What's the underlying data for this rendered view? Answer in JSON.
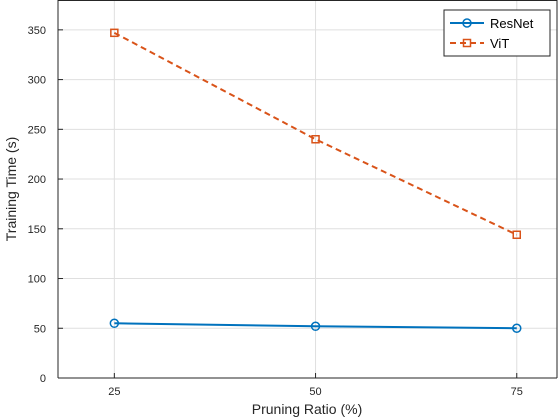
{
  "chart_data": {
    "type": "line",
    "title": "",
    "xlabel": "Pruning Ratio (%)",
    "ylabel": "Training Time (s)",
    "x": [
      25,
      50,
      75
    ],
    "xlim": [
      18,
      80
    ],
    "ylim": [
      0,
      380
    ],
    "xticks": [
      25,
      50,
      75
    ],
    "yticks": [
      0,
      50,
      100,
      150,
      200,
      250,
      300,
      350
    ],
    "grid": true,
    "legend_position": "top-right",
    "series": [
      {
        "name": "ResNet",
        "values": [
          55,
          52,
          50
        ],
        "color": "#0072BD",
        "line_style": "solid",
        "marker": "circle"
      },
      {
        "name": "ViT",
        "values": [
          347,
          240,
          144
        ],
        "color": "#D95319",
        "line_style": "dashed",
        "marker": "square"
      }
    ]
  }
}
